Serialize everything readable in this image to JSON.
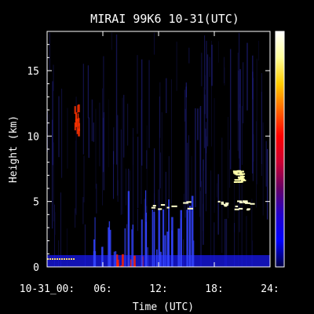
{
  "chart_data": {
    "type": "heatmap",
    "title": "MIRAI 99K6 10-31(UTC)",
    "xlabel": "Time (UTC)",
    "ylabel": "Height (km)",
    "xlim": [
      0,
      24
    ],
    "ylim": [
      0,
      18
    ],
    "x_ticks": [
      0,
      6,
      12,
      18,
      24
    ],
    "x_tick_labels": [
      "10-31_00:",
      "06:",
      "12:",
      "18:",
      "24:"
    ],
    "y_ticks": [
      0,
      5,
      10,
      15
    ],
    "y_tick_labels": [
      "0",
      "5",
      "10",
      "15"
    ],
    "colorbar": {
      "colors": [
        "#ffffff",
        "#ffff99",
        "#ffcc00",
        "#ff6600",
        "#ff0000",
        "#cc0033",
        "#660066",
        "#2200cc",
        "#0000ff",
        "#000044"
      ],
      "labels": []
    },
    "features": [
      {
        "name": "surface backscatter",
        "x": [
          0,
          24
        ],
        "height_km": [
          0,
          0.9
        ],
        "color": "#1a1aff"
      },
      {
        "name": "thin layer",
        "x": [
          0,
          3
        ],
        "height_km": 0.6,
        "color": "#ffdd66"
      },
      {
        "name": "rain streaks",
        "x": [
          7.5,
          11
        ],
        "height_km": [
          0,
          1
        ],
        "color": "#ff2200"
      },
      {
        "name": "convective tops",
        "x": [
          5,
          16
        ],
        "height_km": [
          1,
          6
        ],
        "color": "#3344ff"
      },
      {
        "name": "high cloud streak",
        "x": [
          3,
          3.5
        ],
        "height_km": [
          10.5,
          12.5
        ],
        "color": "#ff3300"
      },
      {
        "name": "melting layer",
        "x": [
          11,
          22
        ],
        "height_km": [
          4.4,
          5.2
        ],
        "color": "#ffffcc"
      },
      {
        "name": "cirrus tops",
        "x": [
          20,
          21
        ],
        "height_km": [
          6.5,
          7.4
        ],
        "color": "#ffffaa"
      }
    ]
  }
}
